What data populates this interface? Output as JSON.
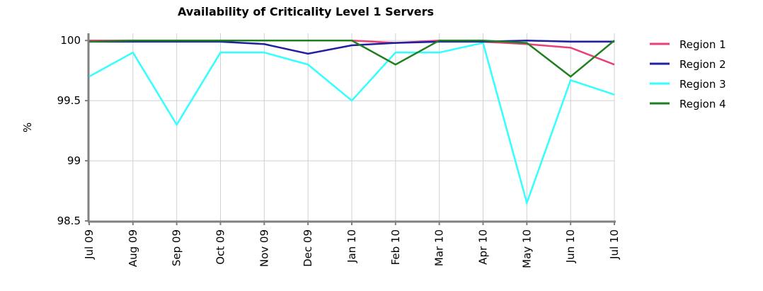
{
  "chart_data": {
    "type": "line",
    "title": "Availability of Criticality Level 1 Servers",
    "ylabel": "%",
    "categories": [
      "Jul 09",
      "Aug 09",
      "Sep 09",
      "Oct 09",
      "Nov 09",
      "Dec 09",
      "Jan 10",
      "Feb 10",
      "Mar 10",
      "Apr 10",
      "May 10",
      "Jun 10",
      "Jul 10"
    ],
    "series": [
      {
        "name": "Region 1",
        "color": "#e8407a",
        "values": [
          100,
          100,
          100,
          100,
          100,
          100,
          100,
          99.98,
          100,
          99.99,
          99.97,
          99.94,
          99.8
        ]
      },
      {
        "name": "Region 2",
        "color": "#2020a0",
        "values": [
          99.99,
          99.99,
          99.99,
          99.99,
          99.97,
          99.89,
          99.96,
          99.98,
          99.99,
          99.99,
          100,
          99.99,
          99.99
        ]
      },
      {
        "name": "Region 3",
        "color": "#33ffff",
        "values": [
          99.7,
          99.9,
          99.3,
          99.9,
          99.9,
          99.8,
          99.5,
          99.9,
          99.9,
          99.98,
          98.65,
          99.67,
          99.55
        ]
      },
      {
        "name": "Region 4",
        "color": "#208020",
        "values": [
          99.99,
          100,
          100,
          100,
          100,
          100,
          100,
          99.8,
          100,
          100,
          99.98,
          99.7,
          100
        ]
      }
    ],
    "ylim": [
      98.5,
      100.06
    ],
    "yticks": [
      100,
      99.5,
      99,
      98.5
    ],
    "grid": true,
    "legend": "right"
  }
}
